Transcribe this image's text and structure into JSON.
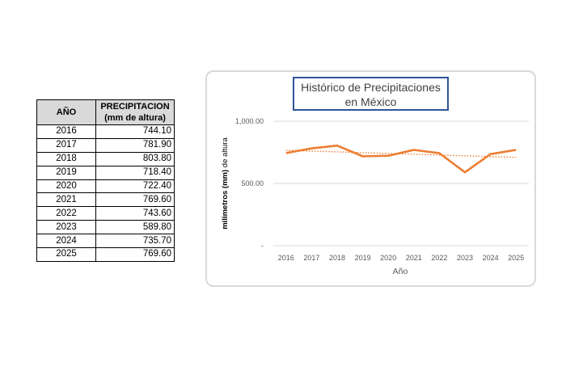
{
  "table": {
    "header_year": "AÑO",
    "header_value_line1": "PRECIPITACION",
    "header_value_line2": "(mm de altura)",
    "rows": [
      {
        "year": "2016",
        "value": "744.10"
      },
      {
        "year": "2017",
        "value": "781.90"
      },
      {
        "year": "2018",
        "value": "803.80"
      },
      {
        "year": "2019",
        "value": "718.40"
      },
      {
        "year": "2020",
        "value": "722.40"
      },
      {
        "year": "2021",
        "value": "769.60"
      },
      {
        "year": "2022",
        "value": "743.60"
      },
      {
        "year": "2023",
        "value": "589.80"
      },
      {
        "year": "2024",
        "value": "735.70"
      },
      {
        "year": "2025",
        "value": "769.60"
      }
    ]
  },
  "chart_data": {
    "type": "line",
    "title_line1": "Histórico de Precipitaciones",
    "title_line2": "en México",
    "xlabel": "Año",
    "ylabel_bold": "milimetros (mm)",
    "ylabel_rest": " de altura",
    "categories": [
      "2016",
      "2017",
      "2018",
      "2019",
      "2020",
      "2021",
      "2022",
      "2023",
      "2024",
      "2025"
    ],
    "series": [
      {
        "values": [
          744.1,
          781.9,
          803.8,
          718.4,
          722.4,
          769.6,
          743.6,
          589.8,
          735.7,
          769.6
        ],
        "color": "#ed7d31"
      }
    ],
    "trendline": {
      "type": "linear",
      "style": "dotted",
      "color": "#ed7d31"
    },
    "ylim": [
      0,
      1000
    ],
    "yticks": [
      {
        "value": 0,
        "label": "-"
      },
      {
        "value": 500,
        "label": "500.00"
      },
      {
        "value": 1000,
        "label": "1,000.00"
      }
    ],
    "grid": true
  }
}
